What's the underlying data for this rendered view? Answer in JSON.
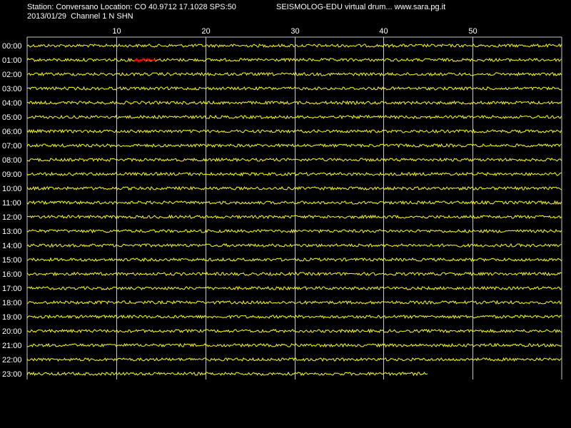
{
  "header": {
    "station_line": "Station: Conversano Location: CO 40.9712 17.1028 SPS:50",
    "date_channel_line": "2013/01/29  Channel 1 N SHN",
    "app_line": "SEISMOLOG-EDU virtual drum... www.sara.pg.it"
  },
  "colors": {
    "background": "#000000",
    "trace": "#ffff00",
    "event": "#ff0000",
    "grid": "#c8c8c8",
    "text": "#ffffff"
  },
  "x_axis": {
    "unit": "minutes",
    "range": [
      0,
      60
    ],
    "ticks": [
      10,
      20,
      30,
      40,
      50
    ]
  },
  "rows": [
    {
      "label": "00:00",
      "end_minute": 60
    },
    {
      "label": "01:00",
      "end_minute": 60,
      "event": {
        "start_minute": 12,
        "end_minute": 14.5
      }
    },
    {
      "label": "02:00",
      "end_minute": 60
    },
    {
      "label": "03:00",
      "end_minute": 60
    },
    {
      "label": "04:00",
      "end_minute": 60
    },
    {
      "label": "05:00",
      "end_minute": 60
    },
    {
      "label": "06:00",
      "end_minute": 60
    },
    {
      "label": "07:00",
      "end_minute": 60
    },
    {
      "label": "08:00",
      "end_minute": 60
    },
    {
      "label": "09:00",
      "end_minute": 60
    },
    {
      "label": "10:00",
      "end_minute": 60
    },
    {
      "label": "11:00",
      "end_minute": 60
    },
    {
      "label": "12:00",
      "end_minute": 60
    },
    {
      "label": "13:00",
      "end_minute": 60
    },
    {
      "label": "14:00",
      "end_minute": 60
    },
    {
      "label": "15:00",
      "end_minute": 60
    },
    {
      "label": "16:00",
      "end_minute": 60
    },
    {
      "label": "17:00",
      "end_minute": 60
    },
    {
      "label": "18:00",
      "end_minute": 60
    },
    {
      "label": "19:00",
      "end_minute": 60
    },
    {
      "label": "20:00",
      "end_minute": 60
    },
    {
      "label": "21:00",
      "end_minute": 60
    },
    {
      "label": "22:00",
      "end_minute": 60
    },
    {
      "label": "23:00",
      "end_minute": 45
    }
  ]
}
